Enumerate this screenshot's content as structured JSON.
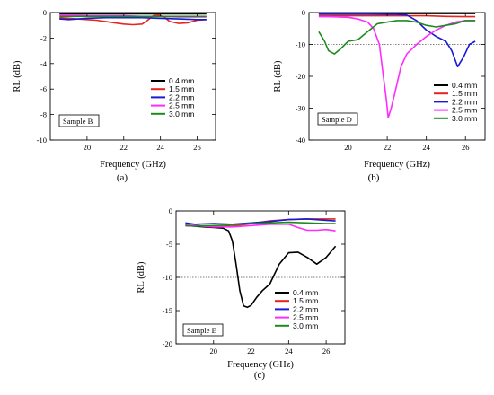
{
  "chart_data": [
    {
      "type": "line",
      "panel_label": "(a)",
      "sample": "Sample B",
      "xlabel": "Frequency (GHz)",
      "ylabel": "RL (dB)",
      "xlim": [
        18,
        27
      ],
      "ylim": [
        -10,
        0
      ],
      "xticks": [
        20,
        22,
        24,
        26
      ],
      "yticks": [
        0,
        -2,
        -4,
        -6,
        -8,
        -10
      ],
      "threshold": null,
      "legend_placement": "bottom-right",
      "series": [
        {
          "name": "0.4 mm",
          "color": "#000000",
          "x": [
            18.5,
            19,
            20,
            21,
            22,
            23,
            24,
            25,
            26,
            26.5
          ],
          "y": [
            -0.1,
            -0.1,
            -0.1,
            -0.1,
            -0.1,
            -0.1,
            -0.1,
            -0.1,
            -0.1,
            -0.1
          ]
        },
        {
          "name": "1.5 mm",
          "color": "#e8231c",
          "x": [
            18.5,
            19,
            20,
            20.5,
            21,
            21.5,
            22,
            22.5,
            23,
            23.3,
            23.6,
            23.9,
            24.2,
            24.5,
            25,
            25.5,
            26,
            26.5
          ],
          "y": [
            -0.4,
            -0.45,
            -0.55,
            -0.6,
            -0.7,
            -0.8,
            -0.9,
            -0.95,
            -0.9,
            -0.6,
            -0.25,
            -0.2,
            -0.35,
            -0.7,
            -0.85,
            -0.8,
            -0.6,
            -0.55
          ]
        },
        {
          "name": "2.2 mm",
          "color": "#1a1ad4",
          "x": [
            18.5,
            19,
            20,
            21,
            22,
            23,
            24,
            25,
            26,
            26.5
          ],
          "y": [
            -0.5,
            -0.55,
            -0.45,
            -0.4,
            -0.4,
            -0.4,
            -0.45,
            -0.5,
            -0.55,
            -0.55
          ]
        },
        {
          "name": "2.5 mm",
          "color": "#ff2cff",
          "x": [
            18.5,
            19,
            20,
            21,
            22,
            23,
            24,
            25,
            26,
            26.5
          ],
          "y": [
            -0.2,
            -0.2,
            -0.25,
            -0.25,
            -0.25,
            -0.3,
            -0.3,
            -0.35,
            -0.35,
            -0.35
          ]
        },
        {
          "name": "3.0 mm",
          "color": "#1e8a1e",
          "x": [
            18.5,
            19,
            20,
            21,
            22,
            23,
            24,
            25,
            26,
            26.5
          ],
          "y": [
            -0.3,
            -0.3,
            -0.3,
            -0.3,
            -0.3,
            -0.3,
            -0.3,
            -0.3,
            -0.3,
            -0.3
          ]
        }
      ]
    },
    {
      "type": "line",
      "panel_label": "(b)",
      "sample": "Sample D",
      "xlabel": "Frequency (GHz)",
      "ylabel": "RL (dB)",
      "xlim": [
        18,
        27
      ],
      "ylim": [
        -40,
        0
      ],
      "xticks": [
        20,
        22,
        24,
        26
      ],
      "yticks": [
        0,
        -10,
        -20,
        -30,
        -40
      ],
      "threshold": -10,
      "legend_placement": "bottom-right",
      "series": [
        {
          "name": "0.4 mm",
          "color": "#000000",
          "x": [
            18.5,
            19,
            20,
            21,
            22,
            23,
            24,
            25,
            26,
            26.5
          ],
          "y": [
            -0.3,
            -0.3,
            -0.3,
            -0.3,
            -0.3,
            -0.3,
            -0.3,
            -0.3,
            -0.3,
            -0.3
          ]
        },
        {
          "name": "1.5 mm",
          "color": "#e8231c",
          "x": [
            18.5,
            19,
            20,
            21,
            22,
            23,
            24,
            25,
            26,
            26.5
          ],
          "y": [
            -1,
            -1,
            -1,
            -1,
            -1,
            -1,
            -1,
            -1.2,
            -1.3,
            -1.3
          ]
        },
        {
          "name": "2.2 mm",
          "color": "#1a1ad4",
          "x": [
            18.5,
            19,
            20,
            21,
            22,
            22.5,
            23,
            23.5,
            24,
            24.5,
            25,
            25.3,
            25.6,
            25.9,
            26.2,
            26.5
          ],
          "y": [
            -0.5,
            -0.5,
            -0.5,
            -0.5,
            -0.6,
            -0.6,
            -0.8,
            -2.5,
            -5.5,
            -7.5,
            -9,
            -12,
            -17,
            -14,
            -10,
            -9
          ]
        },
        {
          "name": "2.5 mm",
          "color": "#ff2cff",
          "x": [
            18.5,
            19,
            19.5,
            20,
            20.5,
            21,
            21.3,
            21.6,
            21.8,
            21.95,
            22.05,
            22.2,
            22.4,
            22.7,
            23,
            23.5,
            24,
            24.5,
            25,
            25.5,
            26,
            26.5
          ],
          "y": [
            -1.3,
            -1.3,
            -1.4,
            -1.5,
            -2,
            -3,
            -5,
            -10,
            -20,
            -27,
            -33,
            -30,
            -25,
            -17,
            -13,
            -10,
            -7.5,
            -5.5,
            -4,
            -3,
            -2.5,
            -2.5
          ]
        },
        {
          "name": "3.0 mm",
          "color": "#1e8a1e",
          "x": [
            18.5,
            18.8,
            19,
            19.3,
            19.6,
            20,
            20.5,
            21,
            21.5,
            22,
            22.5,
            23,
            23.5,
            24,
            24.5,
            25,
            25.5,
            26,
            26.5
          ],
          "y": [
            -6,
            -9,
            -12,
            -13,
            -11.5,
            -9,
            -8.5,
            -6,
            -3.5,
            -3,
            -2.5,
            -2.5,
            -3,
            -4,
            -4.5,
            -4,
            -3.5,
            -2.5,
            -2.5
          ]
        }
      ]
    },
    {
      "type": "line",
      "panel_label": "(c)",
      "sample": "Sample E",
      "xlabel": "Frequency (GHz)",
      "ylabel": "RL (dB)",
      "xlim": [
        18,
        27
      ],
      "ylim": [
        -20,
        0
      ],
      "xticks": [
        20,
        22,
        24,
        26
      ],
      "yticks": [
        0,
        -5,
        -10,
        -15,
        -20
      ],
      "threshold": -10,
      "legend_placement": "bottom-right",
      "series": [
        {
          "name": "0.4 mm",
          "color": "#000000",
          "x": [
            18.5,
            19,
            19.5,
            20,
            20.5,
            20.8,
            21,
            21.2,
            21.4,
            21.6,
            21.8,
            22,
            22.3,
            22.6,
            23,
            23.5,
            24,
            24.5,
            25,
            25.5,
            26,
            26.5
          ],
          "y": [
            -2.2,
            -2.3,
            -2.4,
            -2.5,
            -2.6,
            -3,
            -4.5,
            -8,
            -12,
            -14.3,
            -14.5,
            -14.2,
            -13,
            -12,
            -11,
            -8,
            -6.3,
            -6.2,
            -7,
            -8,
            -7,
            -5.3
          ]
        },
        {
          "name": "1.5 mm",
          "color": "#e8231c",
          "x": [
            18.5,
            19,
            20,
            21,
            22,
            23,
            24,
            25,
            26,
            26.5
          ],
          "y": [
            -2,
            -2.2,
            -2.4,
            -2.3,
            -1.9,
            -1.5,
            -1.3,
            -1.2,
            -1.2,
            -1.2
          ]
        },
        {
          "name": "2.2 mm",
          "color": "#1a1ad4",
          "x": [
            18.5,
            19,
            20,
            21,
            22,
            23,
            24,
            25,
            26,
            26.5
          ],
          "y": [
            -1.8,
            -2,
            -1.9,
            -2,
            -1.8,
            -1.6,
            -1.3,
            -1.2,
            -1.4,
            -1.5
          ]
        },
        {
          "name": "2.5 mm",
          "color": "#ff2cff",
          "x": [
            18.5,
            19,
            20,
            21,
            22,
            23,
            24,
            24.5,
            25,
            25.5,
            26,
            26.5
          ],
          "y": [
            -2,
            -2.2,
            -2.4,
            -2.4,
            -2.2,
            -2,
            -2,
            -2.5,
            -2.9,
            -2.9,
            -2.8,
            -3
          ]
        },
        {
          "name": "3.0 mm",
          "color": "#1e8a1e",
          "x": [
            18.5,
            19,
            20,
            21,
            22,
            23,
            24,
            25,
            26,
            26.5
          ],
          "y": [
            -2.2,
            -2.3,
            -2.2,
            -2.1,
            -1.9,
            -1.8,
            -1.7,
            -1.8,
            -1.9,
            -1.9
          ]
        }
      ]
    }
  ]
}
